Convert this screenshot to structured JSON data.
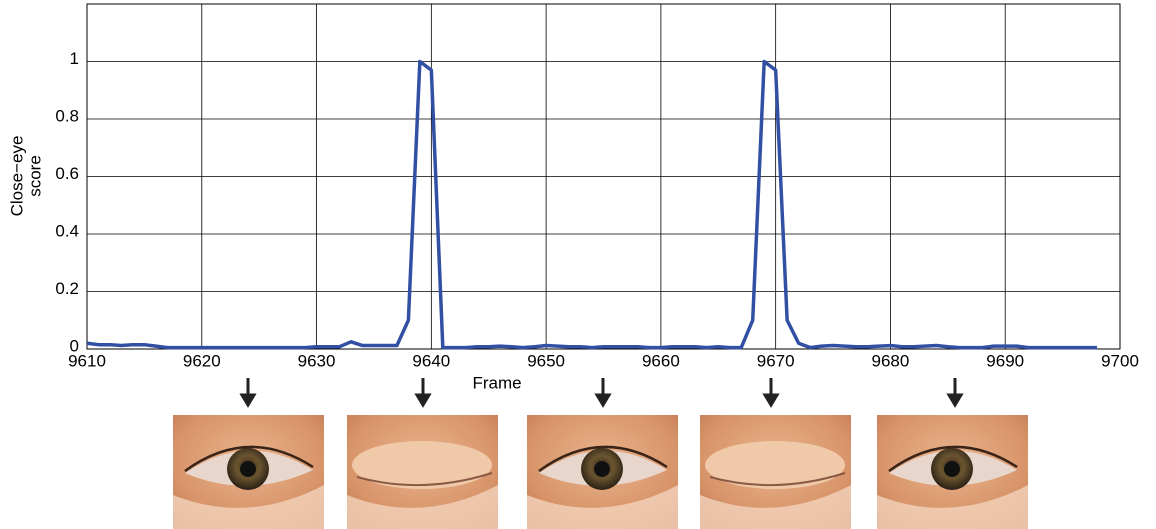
{
  "chart_data": {
    "type": "line",
    "x_label": "Frame",
    "y_label": [
      "Close−eye",
      "score"
    ],
    "x": [
      9610,
      9611,
      9612,
      9613,
      9614,
      9615,
      9616,
      9617,
      9618,
      9619,
      9620,
      9621,
      9622,
      9623,
      9624,
      9625,
      9626,
      9627,
      9628,
      9629,
      9630,
      9631,
      9632,
      9633,
      9634,
      9635,
      9636,
      9637,
      9638,
      9639,
      9640,
      9641,
      9642,
      9643,
      9644,
      9645,
      9646,
      9647,
      9648,
      9649,
      9650,
      9651,
      9652,
      9653,
      9654,
      9655,
      9656,
      9657,
      9658,
      9659,
      9660,
      9661,
      9662,
      9663,
      9664,
      9665,
      9666,
      9667,
      9668,
      9669,
      9670,
      9671,
      9672,
      9673,
      9674,
      9675,
      9676,
      9677,
      9678,
      9679,
      9680,
      9681,
      9682,
      9683,
      9684,
      9685,
      9686,
      9687,
      9688,
      9689,
      9690,
      9691,
      9692,
      9693,
      9694,
      9695,
      9696,
      9697,
      9698
    ],
    "series": [
      {
        "color": "#3150a3",
        "values": [
          0.02,
          0.015,
          0.015,
          0.012,
          0.015,
          0.015,
          0.01,
          0.005,
          0.005,
          0.005,
          0.005,
          0.005,
          0.005,
          0.005,
          0.005,
          0.005,
          0.005,
          0.005,
          0.005,
          0.005,
          0.008,
          0.008,
          0.008,
          0.025,
          0.012,
          0.012,
          0.012,
          0.012,
          0.1,
          1,
          0.97,
          0.005,
          0.005,
          0.005,
          0.008,
          0.008,
          0.01,
          0.008,
          0.005,
          0.008,
          0.012,
          0.01,
          0.008,
          0.008,
          0.005,
          0.008,
          0.008,
          0.008,
          0.008,
          0.005,
          0.005,
          0.008,
          0.008,
          0.008,
          0.005,
          0.008,
          0.005,
          0.005,
          0.1,
          1,
          0.97,
          0.1,
          0.02,
          0.005,
          0.01,
          0.012,
          0.01,
          0.008,
          0.008,
          0.01,
          0.012,
          0.008,
          0.008,
          0.01,
          0.012,
          0.008,
          0.005,
          0.005,
          0.005,
          0.01,
          0.01,
          0.01,
          0.005,
          0.005,
          0.005,
          0.005,
          0.005,
          0.005,
          0.005
        ]
      }
    ],
    "xlim": [
      9610,
      9700
    ],
    "xticks": [
      9610,
      9620,
      9630,
      9640,
      9650,
      9660,
      9670,
      9680,
      9690,
      9700
    ],
    "ylim": [
      0,
      1.2
    ],
    "yticks": [
      0,
      0.2,
      0.4,
      0.6,
      0.8,
      1
    ],
    "grid": true
  }
}
